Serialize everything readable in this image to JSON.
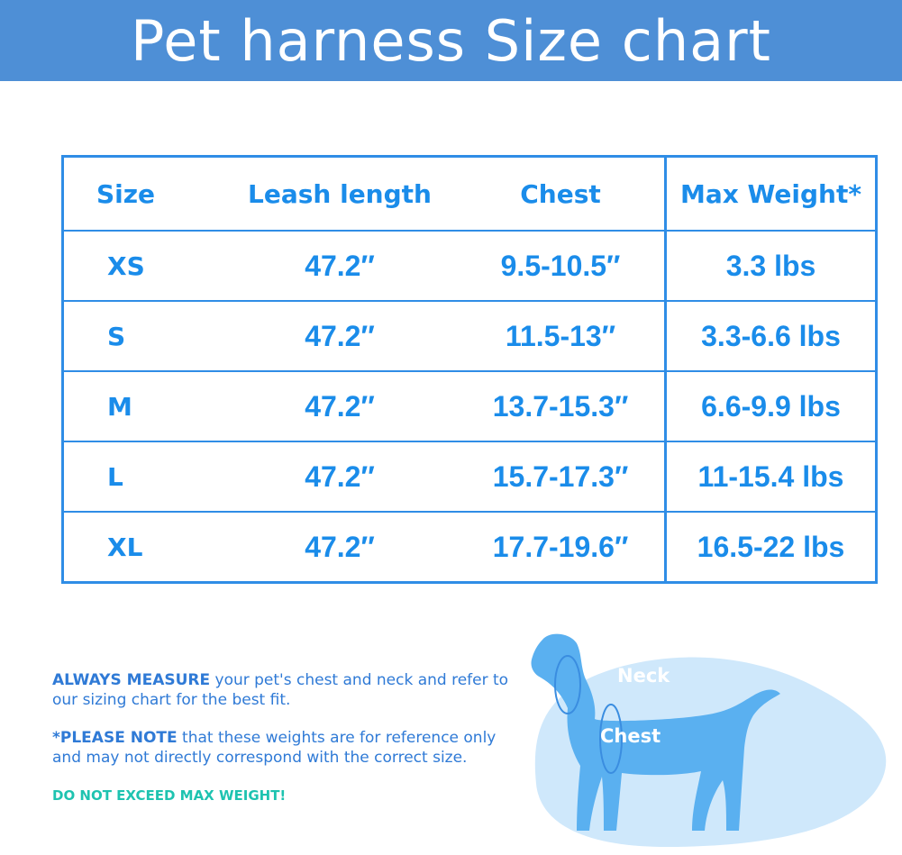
{
  "header": {
    "title": "Pet harness Size chart"
  },
  "table": {
    "headers": [
      "Size",
      "Leash length",
      "Chest",
      "Max Weight*"
    ],
    "rows": [
      {
        "size": "XS",
        "leash": "47.2″",
        "chest": "9.5-10.5″",
        "weight": "3.3 lbs"
      },
      {
        "size": "S",
        "leash": "47.2″",
        "chest": "11.5-13″",
        "weight": "3.3-6.6 lbs"
      },
      {
        "size": "M",
        "leash": "47.2″",
        "chest": "13.7-15.3″",
        "weight": "6.6-9.9 lbs"
      },
      {
        "size": "L",
        "leash": "47.2″",
        "chest": "15.7-17.3″",
        "weight": "11-15.4 lbs"
      },
      {
        "size": "XL",
        "leash": "47.2″",
        "chest": "17.7-19.6″",
        "weight": "16.5-22 lbs"
      }
    ]
  },
  "notes": {
    "measure_bold": "ALWAYS MEASURE",
    "measure_text": "your pet's chest and neck and refer to our sizing chart for the best fit.",
    "note_bold": "*PLEASE NOTE",
    "note_text": "that these weights are for reference only and may not directly correspond with the correct size.",
    "warning": "DO NOT EXCEED MAX WEIGHT!"
  },
  "illustration": {
    "neck_label": "Neck",
    "chest_label": "Chest"
  },
  "colors": {
    "header_bg": "#4e8fd6",
    "table_blue": "#2f8de6",
    "note_blue": "#2f7ad6",
    "warning_teal": "#1ec3b0",
    "dog_blue": "#5ab0f0",
    "blob_light": "#cfe8fb"
  }
}
